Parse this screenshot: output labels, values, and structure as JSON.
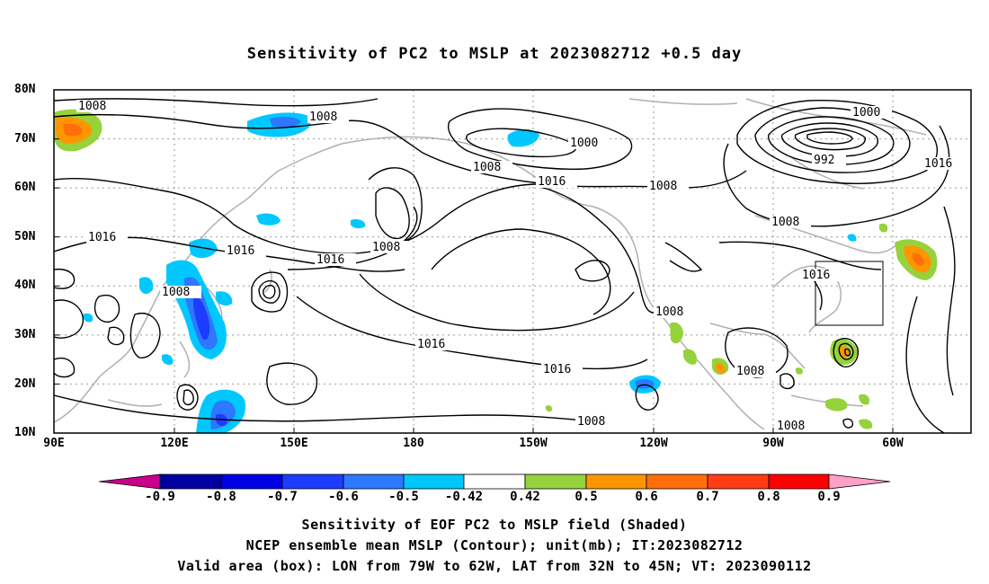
{
  "title": "Sensitivity of PC2 to MSLP at 2023082712 +0.5 day",
  "map": {
    "lon_labels": [
      "90E",
      "120E",
      "150E",
      "180",
      "150W",
      "120W",
      "90W",
      "60W"
    ],
    "lat_labels": [
      "80N",
      "70N",
      "60N",
      "50N",
      "40N",
      "30N",
      "20N",
      "10N"
    ],
    "contour_labels": [
      "1008",
      "1008",
      "1016",
      "1016",
      "1008",
      "1000",
      "1008",
      "1016",
      "1008",
      "1016",
      "1008",
      "1000",
      "992",
      "1016",
      "1008",
      "1016",
      "1008",
      "1016",
      "1016",
      "1008",
      "1008",
      "1008"
    ],
    "valid_box": "79W-62W, 32N-45N"
  },
  "colorbar": {
    "labels": [
      "-0.9",
      "-0.8",
      "-0.7",
      "-0.6",
      "-0.5",
      "-0.42",
      "0.42",
      "0.5",
      "0.6",
      "0.7",
      "0.8",
      "0.9"
    ],
    "colors": [
      "#0000a0",
      "#0000e6",
      "#1e3cff",
      "#2d78ff",
      "#00c8ff",
      "#ffffff",
      "#96d23c",
      "#ff9600",
      "#ff6e0a",
      "#ff3c14",
      "#ff0000"
    ],
    "end_low": "#c8008c",
    "end_high": "#ffa0c8"
  },
  "captions": [
    "Sensitivity of EOF PC2 to MSLP field (Shaded)",
    "NCEP ensemble mean MSLP (Contour); unit(mb); IT:2023082712",
    "Valid area (box): LON from 79W to 62W, LAT from 32N to 45N; VT: 2023090112"
  ]
}
